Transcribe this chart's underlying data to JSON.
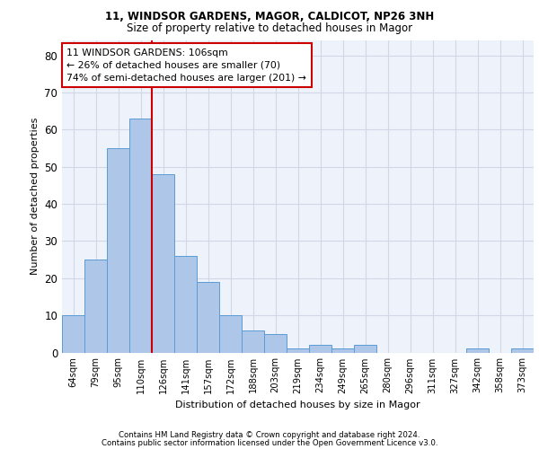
{
  "title1": "11, WINDSOR GARDENS, MAGOR, CALDICOT, NP26 3NH",
  "title2": "Size of property relative to detached houses in Magor",
  "xlabel": "Distribution of detached houses by size in Magor",
  "ylabel": "Number of detached properties",
  "categories": [
    "64sqm",
    "79sqm",
    "95sqm",
    "110sqm",
    "126sqm",
    "141sqm",
    "157sqm",
    "172sqm",
    "188sqm",
    "203sqm",
    "219sqm",
    "234sqm",
    "249sqm",
    "265sqm",
    "280sqm",
    "296sqm",
    "311sqm",
    "327sqm",
    "342sqm",
    "358sqm",
    "373sqm"
  ],
  "values": [
    10,
    25,
    55,
    63,
    48,
    26,
    19,
    10,
    6,
    5,
    1,
    2,
    1,
    2,
    0,
    0,
    0,
    0,
    1,
    0,
    1
  ],
  "bar_color": "#aec6e8",
  "bar_edge_color": "#5b9bd5",
  "grid_color": "#d0d8e8",
  "background_color": "#eef2fa",
  "vline_x": 3.5,
  "vline_color": "#cc0000",
  "annotation_lines": [
    "11 WINDSOR GARDENS: 106sqm",
    "← 26% of detached houses are smaller (70)",
    "74% of semi-detached houses are larger (201) →"
  ],
  "ylim": [
    0,
    84
  ],
  "yticks": [
    0,
    10,
    20,
    30,
    40,
    50,
    60,
    70,
    80
  ],
  "footer1": "Contains HM Land Registry data © Crown copyright and database right 2024.",
  "footer2": "Contains public sector information licensed under the Open Government Licence v3.0."
}
